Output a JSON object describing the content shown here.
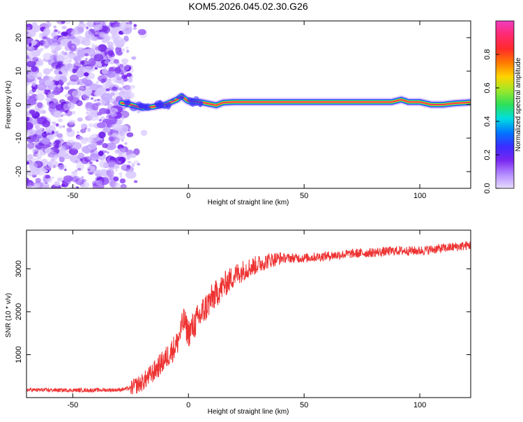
{
  "title": "KOM5.2026.045.02.30.G26",
  "colors": {
    "snr_line": "#ee3333",
    "frame": "#000000",
    "background": "#ffffff"
  },
  "chart_data": [
    {
      "type": "heatmap",
      "xlabel": "Height of straight line (km)",
      "ylabel": "Frequency (Hz)",
      "xlim": [
        -70,
        122
      ],
      "ylim": [
        -25,
        25
      ],
      "xticks": [
        -50,
        0,
        50,
        100
      ],
      "yticks": [
        -20,
        -10,
        0,
        10,
        20
      ],
      "colorbar": {
        "label": "Normalized spectral amplitude",
        "range": [
          0,
          1
        ],
        "ticks": [
          "0.0",
          "0.2",
          "0.4",
          "0.6",
          "0.8"
        ],
        "colormap": [
          "#e8dcff",
          "#b58cff",
          "#7a28f0",
          "#3a2cff",
          "#0077ff",
          "#00dde0",
          "#2ce05a",
          "#9be82a",
          "#ffd400",
          "#ff7a00",
          "#ff2a2a",
          "#ff2a70",
          "#f03cc0"
        ]
      },
      "noise_region_km": [
        -70,
        -25
      ],
      "signal_track": {
        "description_values": "frequency (Hz) vs height (km)",
        "x": [
          -29,
          -25,
          -20,
          -15,
          -10,
          -5,
          -3,
          0,
          5,
          12,
          15,
          20,
          50,
          88,
          92,
          95,
          100,
          105,
          110,
          115,
          122
        ],
        "y": [
          0.5,
          0.0,
          -1.0,
          -0.6,
          0.0,
          1.5,
          2.5,
          1.0,
          0.8,
          -0.2,
          0.6,
          0.8,
          0.8,
          0.8,
          1.5,
          0.8,
          0.8,
          0.0,
          0.0,
          0.4,
          0.7
        ]
      }
    },
    {
      "type": "line",
      "xlabel": "Height of straight line (km)",
      "ylabel": "SNR (10 * v/v)",
      "xlim": [
        -70,
        122
      ],
      "ylim": [
        0,
        3900
      ],
      "xticks": [
        -50,
        0,
        50,
        100
      ],
      "yticks": [
        1000,
        2000,
        3000
      ],
      "series": [
        {
          "name": "SNR",
          "x": [
            -70,
            -50,
            -30,
            -25,
            -20,
            -15,
            -10,
            -5,
            -2,
            0,
            5,
            10,
            15,
            20,
            25,
            30,
            35,
            40,
            50,
            60,
            70,
            80,
            90,
            100,
            110,
            122
          ],
          "y": [
            180,
            170,
            180,
            220,
            350,
            600,
            900,
            1250,
            1800,
            1500,
            1900,
            2300,
            2600,
            2850,
            3000,
            3100,
            3200,
            3250,
            3250,
            3300,
            3350,
            3380,
            3420,
            3420,
            3480,
            3550
          ]
        }
      ]
    }
  ]
}
